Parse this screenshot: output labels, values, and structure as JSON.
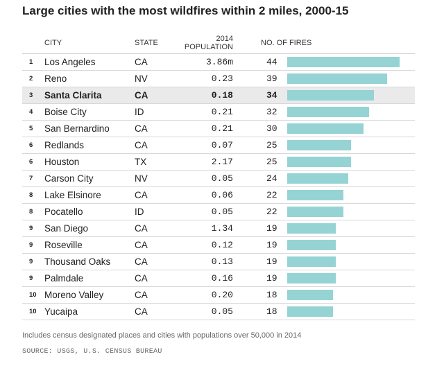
{
  "chart_data": {
    "type": "table",
    "title": "Large cities with the most wildfires within 2 miles, 2000-15",
    "columns": [
      "CITY",
      "STATE",
      "2014 POPULATION",
      "NO. OF FIRES"
    ],
    "bar_color": "#96d3d4",
    "highlight_color": "#eaeaea",
    "x_max": 44,
    "rows": [
      {
        "rank": "1",
        "city": "Los Angeles",
        "state": "CA",
        "population": "3.86m",
        "fires": 44
      },
      {
        "rank": "2",
        "city": "Reno",
        "state": "NV",
        "population": "0.23",
        "fires": 39
      },
      {
        "rank": "3",
        "city": "Santa Clarita",
        "state": "CA",
        "population": "0.18",
        "fires": 34,
        "highlight": true
      },
      {
        "rank": "4",
        "city": "Boise City",
        "state": "ID",
        "population": "0.21",
        "fires": 32
      },
      {
        "rank": "5",
        "city": "San Bernardino",
        "state": "CA",
        "population": "0.21",
        "fires": 30
      },
      {
        "rank": "6",
        "city": "Redlands",
        "state": "CA",
        "population": "0.07",
        "fires": 25
      },
      {
        "rank": "6",
        "city": "Houston",
        "state": "TX",
        "population": "2.17",
        "fires": 25
      },
      {
        "rank": "7",
        "city": "Carson City",
        "state": "NV",
        "population": "0.05",
        "fires": 24
      },
      {
        "rank": "8",
        "city": "Lake Elsinore",
        "state": "CA",
        "population": "0.06",
        "fires": 22
      },
      {
        "rank": "8",
        "city": "Pocatello",
        "state": "ID",
        "population": "0.05",
        "fires": 22
      },
      {
        "rank": "9",
        "city": "San Diego",
        "state": "CA",
        "population": "1.34",
        "fires": 19
      },
      {
        "rank": "9",
        "city": "Roseville",
        "state": "CA",
        "population": "0.12",
        "fires": 19
      },
      {
        "rank": "9",
        "city": "Thousand Oaks",
        "state": "CA",
        "population": "0.13",
        "fires": 19
      },
      {
        "rank": "9",
        "city": "Palmdale",
        "state": "CA",
        "population": "0.16",
        "fires": 19
      },
      {
        "rank": "10",
        "city": "Moreno Valley",
        "state": "CA",
        "population": "0.20",
        "fires": 18
      },
      {
        "rank": "10",
        "city": "Yucaipa",
        "state": "CA",
        "population": "0.05",
        "fires": 18
      }
    ]
  },
  "footer": {
    "note": "Includes census designated places and cities with populations over 50,000 in 2014",
    "source": "SOURCE: USGS, U.S. CENSUS BUREAU"
  }
}
